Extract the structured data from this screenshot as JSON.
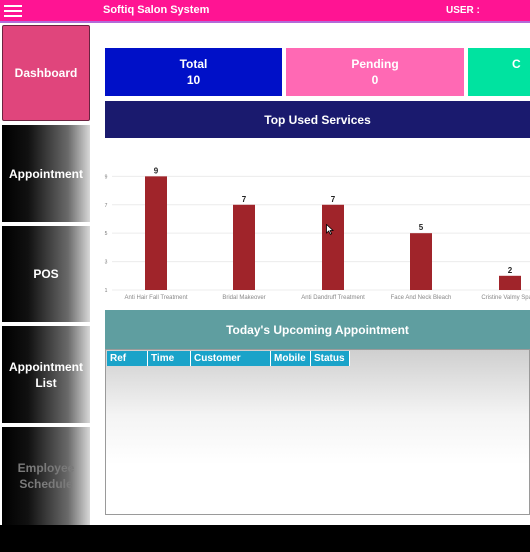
{
  "header": {
    "app_title": "Softiq Salon System",
    "user_label": "USER :",
    "menu_icon": "hamburger-menu-icon",
    "colors": {
      "bar": "#ff1493",
      "underline": "#b36ad8"
    }
  },
  "sidebar": {
    "items": [
      {
        "label": "Dashboard",
        "active": true
      },
      {
        "label": "Appointment",
        "active": false
      },
      {
        "label": "POS",
        "active": false
      },
      {
        "label": "Appointment List",
        "active": false
      },
      {
        "label": "Employee Schedule",
        "active": false
      }
    ],
    "colors": {
      "active": "#e0457c"
    }
  },
  "cards": [
    {
      "label": "Total",
      "value": "10",
      "color": "#0010c8"
    },
    {
      "label": "Pending",
      "value": "0",
      "color": "#ff69b4"
    },
    {
      "label": "C",
      "value": "",
      "color": "#00e3a0"
    }
  ],
  "top_services": {
    "title": "Top Used Services",
    "color": "#1a1a6e"
  },
  "chart_data": {
    "type": "bar",
    "title": "",
    "xlabel": "",
    "ylabel": "",
    "categories": [
      "Anti Hair Fall Treatment",
      "Bridal Makeover",
      "Anti Dandruff Treatment",
      "Face And Neck Bleach",
      "Cristine Valmy Spa M"
    ],
    "values": [
      9,
      7,
      7,
      5,
      2
    ],
    "data_labels": [
      "9",
      "7",
      "7",
      "5",
      "2"
    ],
    "y_ticks": [
      1,
      3,
      5,
      7,
      9
    ],
    "ylim": [
      1,
      9.8
    ],
    "grid": true,
    "bar_color": "#a0242a"
  },
  "upcoming": {
    "title": "Today's Upcoming Appointment",
    "color": "#5f9ea0",
    "columns": [
      "Ref",
      "Time",
      "Customer",
      "Mobile",
      "Status"
    ],
    "rows": []
  }
}
